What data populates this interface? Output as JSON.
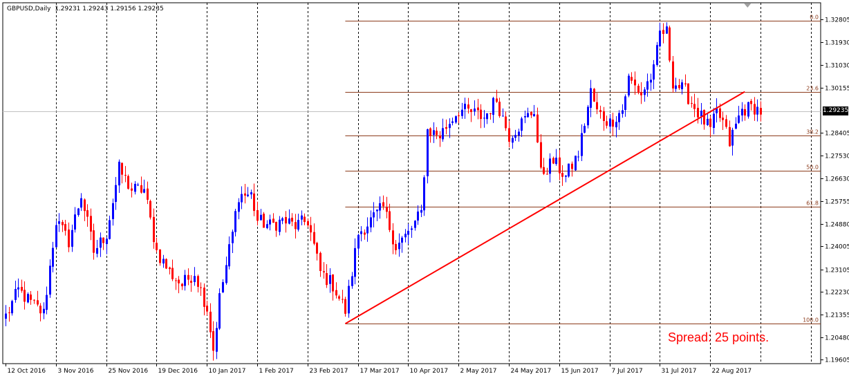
{
  "header": {
    "symbol_label": "GBPUSD,Daily",
    "ohlc": [
      "1.29231",
      "1.29243",
      "1.29156",
      "1.29235"
    ]
  },
  "current_price_label": "1.29235",
  "spread_text": "Spread: 25 points.",
  "colors": {
    "bull": "#0000ff",
    "bear": "#ff0000",
    "fib": "#8b3a1a",
    "trend": "#ff0000",
    "grid": "#000000",
    "axis": "#000000",
    "price_line": "#c0c0c0",
    "current_price_bg": "#000000"
  },
  "chart_data": {
    "type": "candlestick",
    "title": "GBPUSD,Daily",
    "grid": true,
    "ylim": [
      1.1945,
      1.3345
    ],
    "y_ticks": [
      "1.32805",
      "1.31930",
      "1.31030",
      "1.30155",
      "1.28405",
      "1.27530",
      "1.26630",
      "1.25755",
      "1.24880",
      "1.24005",
      "1.23105",
      "1.22230",
      "1.21355",
      "1.20480",
      "1.19605"
    ],
    "x_ticks": [
      "12 Oct 2016",
      "3 Nov 2016",
      "25 Nov 2016",
      "19 Dec 2016",
      "10 Jan 2017",
      "1 Feb 2017",
      "23 Feb 2017",
      "17 Mar 2017",
      "10 Apr 2017",
      "2 May 2017",
      "24 May 2017",
      "15 Jun 2017",
      "7 Jul 2017",
      "31 Jul 2017",
      "22 Aug 2017"
    ],
    "x_tick_bar_index": [
      0,
      16,
      32,
      48,
      64,
      80,
      96,
      112,
      128,
      144,
      160,
      176,
      192,
      208,
      224
    ],
    "current_price": 1.29235,
    "fibonacci": {
      "levels": [
        "0.0",
        "23.6",
        "38.2",
        "50.0",
        "61.8",
        "100.0"
      ],
      "prices": [
        1.3275,
        1.3,
        1.283,
        1.2692,
        1.2555,
        1.21
      ],
      "start_bar": 108
    },
    "trendline": {
      "start": {
        "bar": 108,
        "price": 1.21
      },
      "end": {
        "bar": 235,
        "price": 1.3
      }
    },
    "anchors": [
      {
        "bar": 0,
        "price": 1.213
      },
      {
        "bar": 4,
        "price": 1.223
      },
      {
        "bar": 8,
        "price": 1.218
      },
      {
        "bar": 12,
        "price": 1.214
      },
      {
        "bar": 16,
        "price": 1.25
      },
      {
        "bar": 20,
        "price": 1.242
      },
      {
        "bar": 24,
        "price": 1.26
      },
      {
        "bar": 28,
        "price": 1.238
      },
      {
        "bar": 32,
        "price": 1.245
      },
      {
        "bar": 36,
        "price": 1.27
      },
      {
        "bar": 40,
        "price": 1.262
      },
      {
        "bar": 44,
        "price": 1.262
      },
      {
        "bar": 48,
        "price": 1.238
      },
      {
        "bar": 52,
        "price": 1.23
      },
      {
        "bar": 56,
        "price": 1.225
      },
      {
        "bar": 60,
        "price": 1.23
      },
      {
        "bar": 64,
        "price": 1.216
      },
      {
        "bar": 66,
        "price": 1.2
      },
      {
        "bar": 68,
        "price": 1.22
      },
      {
        "bar": 72,
        "price": 1.245
      },
      {
        "bar": 74,
        "price": 1.26
      },
      {
        "bar": 78,
        "price": 1.26
      },
      {
        "bar": 80,
        "price": 1.25
      },
      {
        "bar": 84,
        "price": 1.248
      },
      {
        "bar": 88,
        "price": 1.25
      },
      {
        "bar": 92,
        "price": 1.248
      },
      {
        "bar": 96,
        "price": 1.25
      },
      {
        "bar": 100,
        "price": 1.23
      },
      {
        "bar": 104,
        "price": 1.225
      },
      {
        "bar": 108,
        "price": 1.215
      },
      {
        "bar": 112,
        "price": 1.245
      },
      {
        "bar": 116,
        "price": 1.25
      },
      {
        "bar": 120,
        "price": 1.255
      },
      {
        "bar": 124,
        "price": 1.24
      },
      {
        "bar": 128,
        "price": 1.245
      },
      {
        "bar": 132,
        "price": 1.253
      },
      {
        "bar": 134,
        "price": 1.285
      },
      {
        "bar": 138,
        "price": 1.283
      },
      {
        "bar": 142,
        "price": 1.29
      },
      {
        "bar": 144,
        "price": 1.293
      },
      {
        "bar": 148,
        "price": 1.292
      },
      {
        "bar": 152,
        "price": 1.29
      },
      {
        "bar": 156,
        "price": 1.297
      },
      {
        "bar": 160,
        "price": 1.283
      },
      {
        "bar": 164,
        "price": 1.288
      },
      {
        "bar": 168,
        "price": 1.293
      },
      {
        "bar": 170,
        "price": 1.268
      },
      {
        "bar": 174,
        "price": 1.273
      },
      {
        "bar": 178,
        "price": 1.267
      },
      {
        "bar": 182,
        "price": 1.276
      },
      {
        "bar": 184,
        "price": 1.288
      },
      {
        "bar": 186,
        "price": 1.3
      },
      {
        "bar": 188,
        "price": 1.292
      },
      {
        "bar": 192,
        "price": 1.288
      },
      {
        "bar": 196,
        "price": 1.293
      },
      {
        "bar": 198,
        "price": 1.305
      },
      {
        "bar": 202,
        "price": 1.299
      },
      {
        "bar": 206,
        "price": 1.308
      },
      {
        "bar": 208,
        "price": 1.323
      },
      {
        "bar": 210,
        "price": 1.323
      },
      {
        "bar": 212,
        "price": 1.304
      },
      {
        "bar": 216,
        "price": 1.3
      },
      {
        "bar": 220,
        "price": 1.292
      },
      {
        "bar": 224,
        "price": 1.285
      },
      {
        "bar": 226,
        "price": 1.292
      },
      {
        "bar": 228,
        "price": 1.288
      },
      {
        "bar": 230,
        "price": 1.28
      },
      {
        "bar": 232,
        "price": 1.287
      },
      {
        "bar": 234,
        "price": 1.293
      },
      {
        "bar": 238,
        "price": 1.294
      },
      {
        "bar": 240,
        "price": 1.2924
      }
    ]
  }
}
